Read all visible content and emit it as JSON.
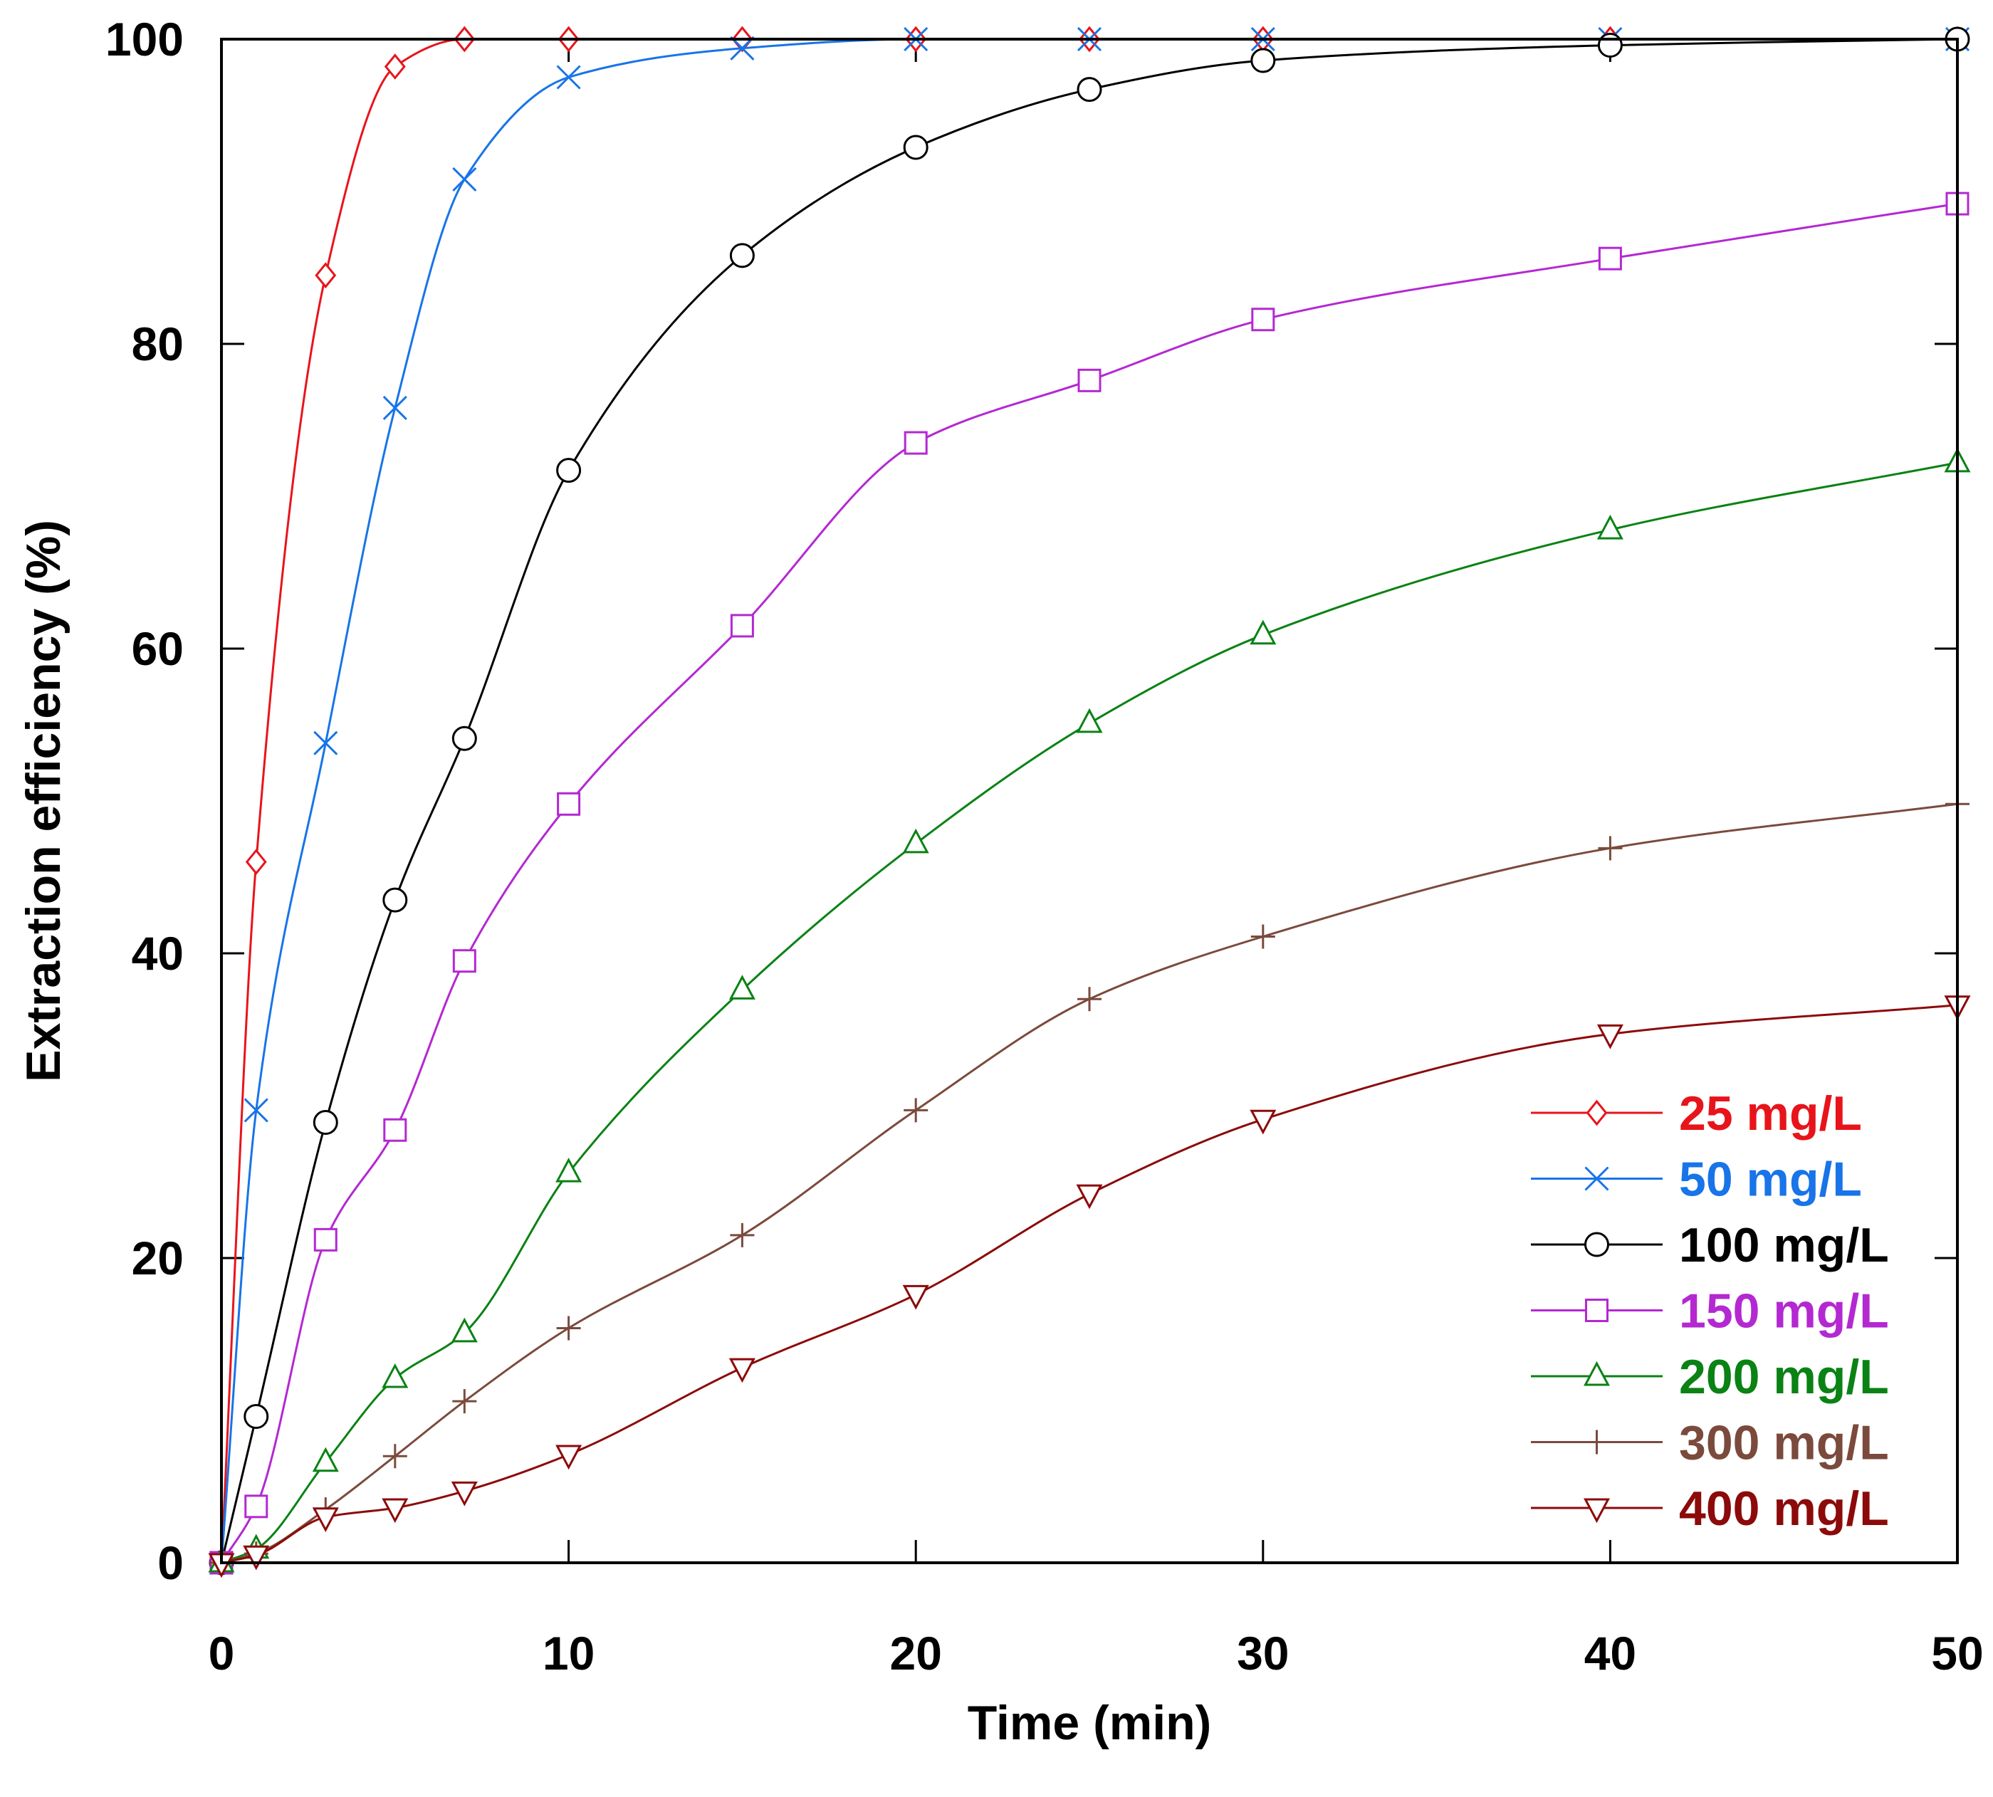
{
  "chart_data": {
    "type": "line",
    "title": "",
    "xlabel": "Time (min)",
    "ylabel": "Extraction efficiency (%)",
    "xlim": [
      0,
      50
    ],
    "ylim": [
      0,
      100
    ],
    "xticks": [
      0,
      10,
      20,
      30,
      40,
      50
    ],
    "yticks": [
      0,
      20,
      40,
      60,
      80,
      100
    ],
    "xtick_labels": [
      "0",
      "10",
      "20",
      "30",
      "40",
      "50"
    ],
    "ytick_labels": [
      "0",
      "20",
      "40",
      "60",
      "80",
      "100"
    ],
    "grid": false,
    "legend_position": "bottom-right",
    "series": [
      {
        "name": "25 mg/L",
        "color": "#e8141b",
        "marker": "diamond",
        "x": [
          0,
          1,
          3,
          5,
          7,
          10,
          15,
          20,
          25,
          30,
          40,
          50
        ],
        "y": [
          0,
          46,
          84.5,
          98.2,
          100,
          100,
          100,
          100,
          100,
          100,
          100,
          100
        ]
      },
      {
        "name": "50 mg/L",
        "color": "#1874e8",
        "marker": "x",
        "x": [
          0,
          1,
          3,
          5,
          7,
          10,
          15,
          20,
          25,
          30,
          40,
          50
        ],
        "y": [
          0,
          29.7,
          53.8,
          75.8,
          90.8,
          97.5,
          99.4,
          100,
          100,
          100,
          100,
          100
        ]
      },
      {
        "name": "100 mg/L",
        "color": "#000000",
        "marker": "circle",
        "x": [
          0,
          1,
          3,
          5,
          7,
          10,
          15,
          20,
          25,
          30,
          40,
          50
        ],
        "y": [
          0,
          9.6,
          28.9,
          43.5,
          54.1,
          71.7,
          85.8,
          92.9,
          96.7,
          98.6,
          99.6,
          100
        ]
      },
      {
        "name": "150 mg/L",
        "color": "#b428d2",
        "marker": "square",
        "x": [
          0,
          1,
          3,
          5,
          7,
          10,
          15,
          20,
          25,
          30,
          40,
          50
        ],
        "y": [
          0,
          3.7,
          21.2,
          28.4,
          39.5,
          49.8,
          61.5,
          73.5,
          77.6,
          81.6,
          85.6,
          89.2
        ]
      },
      {
        "name": "200 mg/L",
        "color": "#0a8214",
        "marker": "triangle-up",
        "x": [
          0,
          1,
          3,
          5,
          7,
          10,
          15,
          20,
          25,
          30,
          40,
          50
        ],
        "y": [
          0,
          0.9,
          6.6,
          12.1,
          15.1,
          25.6,
          37.6,
          47.2,
          55.1,
          60.9,
          67.8,
          72.2
        ]
      },
      {
        "name": "300 mg/L",
        "color": "#7b4a3c",
        "marker": "plus",
        "x": [
          0,
          1,
          3,
          5,
          7,
          10,
          15,
          20,
          25,
          30,
          40,
          50
        ],
        "y": [
          0,
          0.6,
          3.5,
          7.0,
          10.6,
          15.4,
          21.5,
          29.7,
          37.0,
          41.1,
          46.9,
          49.8
        ]
      },
      {
        "name": "400 mg/L",
        "color": "#8c0a0a",
        "marker": "triangle-down",
        "x": [
          0,
          1,
          3,
          5,
          7,
          10,
          15,
          20,
          25,
          30,
          40,
          50
        ],
        "y": [
          0,
          0.5,
          3.0,
          3.6,
          4.7,
          7.1,
          12.8,
          17.6,
          24.2,
          29.1,
          34.7,
          36.6
        ]
      }
    ]
  }
}
